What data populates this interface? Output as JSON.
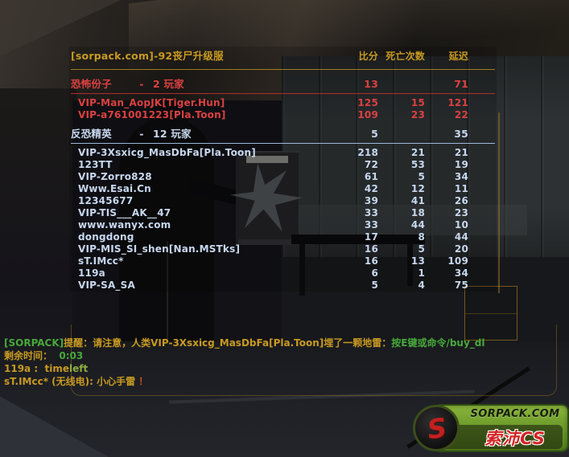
{
  "palette": {
    "gold": "#c89a22",
    "green": "#47a93a",
    "lime": "#8fae3e",
    "red_excl": "#cf4d1d",
    "t_red": "#dc4141",
    "t_line": "#b02e2e",
    "ct_blue": "#c7d7ee",
    "ct_line": "#9cb6d8"
  },
  "scoreboard": {
    "title": "[sorpack.com]-92丧尸升级服",
    "columns": {
      "score": "比分",
      "deaths": "死亡次数",
      "latency": "延迟"
    },
    "teams": [
      {
        "name": "恐怖份子",
        "dash": "-",
        "count": "2 玩家",
        "score": "13",
        "latency": "71",
        "text_color": "t_red",
        "line_color": "t_line",
        "players": [
          {
            "name": "VIP-Man_AopJK[Tiger.Hun]",
            "score": "125",
            "deaths": "15",
            "latency": "121"
          },
          {
            "name": "VIP-a761001223[Pla.Toon]",
            "score": "109",
            "deaths": "23",
            "latency": "22"
          }
        ]
      },
      {
        "name": "反恐精英",
        "dash": "-",
        "count": "12 玩家",
        "score": "5",
        "latency": "35",
        "text_color": "ct_blue",
        "line_color": "ct_line",
        "players": [
          {
            "name": "VIP-3Xsxicg_MasDbFa[Pla.Toon]",
            "score": "218",
            "deaths": "21",
            "latency": "21"
          },
          {
            "name": "123TT",
            "score": "72",
            "deaths": "53",
            "latency": "19"
          },
          {
            "name": "VIP-Zorro828",
            "score": "61",
            "deaths": "5",
            "latency": "34"
          },
          {
            "name": "Www.Esai.Cn",
            "score": "42",
            "deaths": "12",
            "latency": "11"
          },
          {
            "name": "12345677",
            "score": "39",
            "deaths": "41",
            "latency": "26"
          },
          {
            "name": "VIP-TIS___AK__47",
            "score": "33",
            "deaths": "18",
            "latency": "23"
          },
          {
            "name": "www.wanyx.com",
            "score": "33",
            "deaths": "44",
            "latency": "10"
          },
          {
            "name": "dongdong",
            "score": "17",
            "deaths": "8",
            "latency": "44"
          },
          {
            "name": "VIP-MIS_SI_shen[Nan.MSTks]",
            "score": "16",
            "deaths": "5",
            "latency": "20"
          },
          {
            "name": "sT.IMcc*",
            "score": "16",
            "deaths": "13",
            "latency": "109"
          },
          {
            "name": "119a",
            "score": "6",
            "deaths": "1",
            "latency": "34"
          },
          {
            "name": "VIP-SA_SA",
            "score": "5",
            "deaths": "4",
            "latency": "75"
          }
        ]
      }
    ]
  },
  "chat": {
    "lines": [
      {
        "segments": [
          {
            "text": "[SORPACK]",
            "color": "green"
          },
          {
            "text": "提醒：请注意，人类VIP-3Xsxicg_MasDbFa[Pla.Toon]埋了一颗地雷：",
            "color": "gold"
          },
          {
            "text": "按E键或命令/buy_dl",
            "color": "green"
          }
        ]
      },
      {
        "segments": [
          {
            "text": "剩余时间：  ",
            "color": "gold"
          },
          {
            "text": "0:03",
            "color": "green"
          }
        ]
      },
      {
        "segments": [
          {
            "text": "119a :  time",
            "color": "gold"
          },
          {
            "text": "left",
            "color": "lime"
          }
        ]
      },
      {
        "segments": [
          {
            "text": "sT.IMcc* (无线电): 小心手雷 ",
            "color": "gold"
          },
          {
            "text": "！",
            "color": "red_excl"
          }
        ]
      }
    ]
  },
  "logo": {
    "site": "SORPACK.COM",
    "brand": "索沛CS",
    "icon_letter": "S"
  }
}
